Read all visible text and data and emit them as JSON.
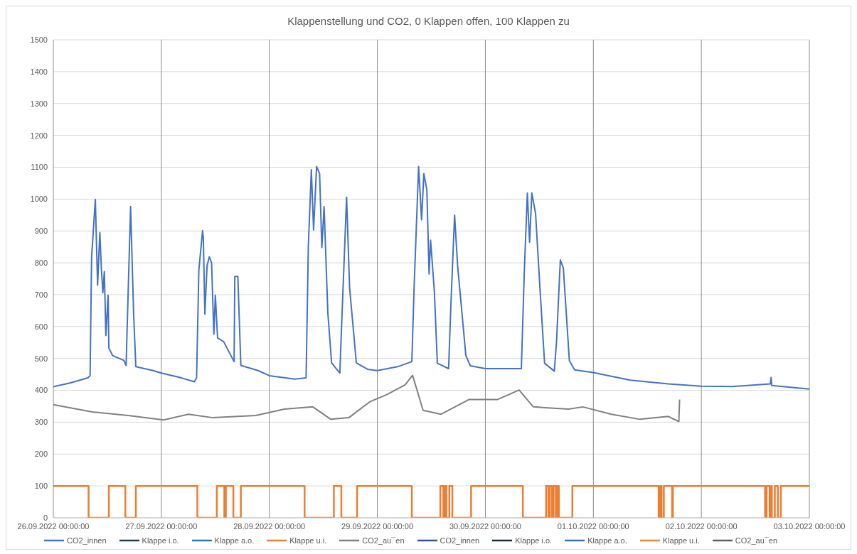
{
  "chart_data": {
    "type": "line",
    "title": "Klappenstellung und CO2, 0 Klappen offen, 100 Klappen zu",
    "grid": true,
    "legend": "bottom",
    "xlim": [
      "2022-09-26T00:00",
      "2022-10-03T00:00"
    ],
    "xticks": [
      {
        "value": "2022-09-26T00:00",
        "label": "26.09.2022 00:00:00"
      },
      {
        "value": "2022-09-27T00:00",
        "label": "27.09.2022 00:00:00"
      },
      {
        "value": "2022-09-28T00:00",
        "label": "28.09.2022 00:00:00"
      },
      {
        "value": "2022-09-29T00:00",
        "label": "29.09.2022 00:00:00"
      },
      {
        "value": "2022-09-30T00:00",
        "label": "30.09.2022 00:00:00"
      },
      {
        "value": "2022-10-01T00:00",
        "label": "01.10.2022 00:00:00"
      },
      {
        "value": "2022-10-02T00:00",
        "label": "02.10.2022 00:00:00"
      },
      {
        "value": "2022-10-03T00:00",
        "label": "03.10.2022 00:00:00"
      }
    ],
    "ylim": [
      0,
      1500
    ],
    "yticks": [
      0,
      100,
      200,
      300,
      400,
      500,
      600,
      700,
      800,
      900,
      1000,
      1100,
      1200,
      1300,
      1400,
      1500
    ],
    "series": [
      {
        "name": "CO2_innen",
        "color": "#4472c4",
        "x": [
          "2022-09-26T00:00",
          "2022-09-26T03:40",
          "2022-09-26T07:40",
          "2022-09-26T08:10",
          "2022-09-26T08:30",
          "2022-09-26T09:20",
          "2022-09-26T09:50",
          "2022-09-26T10:20",
          "2022-09-26T10:40",
          "2022-09-26T11:00",
          "2022-09-26T11:20",
          "2022-09-26T11:40",
          "2022-09-26T12:10",
          "2022-09-26T12:20",
          "2022-09-26T13:10",
          "2022-09-26T15:40",
          "2022-09-26T16:10",
          "2022-09-26T17:10",
          "2022-09-26T17:50",
          "2022-09-26T18:20",
          "2022-09-26T22:10",
          "2022-09-27T00:00",
          "2022-09-27T03:40",
          "2022-09-27T07:20",
          "2022-09-27T07:50",
          "2022-09-27T08:20",
          "2022-09-27T09:10",
          "2022-09-27T09:20",
          "2022-09-27T09:40",
          "2022-09-27T10:10",
          "2022-09-27T10:40",
          "2022-09-27T11:10",
          "2022-09-27T11:40",
          "2022-09-27T12:00",
          "2022-09-27T12:30",
          "2022-09-27T13:50",
          "2022-09-27T16:10",
          "2022-09-27T16:20",
          "2022-09-27T17:00",
          "2022-09-27T17:40",
          "2022-09-27T21:30",
          "2022-09-28T00:00",
          "2022-09-28T05:40",
          "2022-09-28T08:10",
          "2022-09-28T08:40",
          "2022-09-28T09:20",
          "2022-09-28T09:50",
          "2022-09-28T10:30",
          "2022-09-28T11:10",
          "2022-09-28T11:40",
          "2022-09-28T12:10",
          "2022-09-28T13:00",
          "2022-09-28T13:50",
          "2022-09-28T15:40",
          "2022-09-28T16:10",
          "2022-09-28T17:10",
          "2022-09-28T17:50",
          "2022-09-28T19:20",
          "2022-09-28T21:50",
          "2022-09-29T00:00",
          "2022-09-29T04:30",
          "2022-09-29T07:40",
          "2022-09-29T08:10",
          "2022-09-29T09:10",
          "2022-09-29T09:50",
          "2022-09-29T10:20",
          "2022-09-29T11:00",
          "2022-09-29T11:30",
          "2022-09-29T11:50",
          "2022-09-29T12:40",
          "2022-09-29T13:20",
          "2022-09-29T15:50",
          "2022-09-29T16:20",
          "2022-09-29T17:10",
          "2022-09-29T17:50",
          "2022-09-29T19:40",
          "2022-09-29T20:40",
          "2022-09-30T00:00",
          "2022-09-30T08:00",
          "2022-09-30T08:40",
          "2022-09-30T09:20",
          "2022-09-30T09:50",
          "2022-09-30T10:20",
          "2022-09-30T11:10",
          "2022-09-30T12:00",
          "2022-09-30T13:10",
          "2022-09-30T15:20",
          "2022-09-30T15:50",
          "2022-09-30T16:40",
          "2022-09-30T17:20",
          "2022-09-30T18:40",
          "2022-09-30T19:50",
          "2022-10-01T00:00",
          "2022-10-01T08:10",
          "2022-10-01T16:40",
          "2022-10-02T00:00",
          "2022-10-02T06:50",
          "2022-10-02T15:20",
          "2022-10-02T15:30",
          "2022-10-02T15:40",
          "2022-10-03T00:00"
        ],
        "values": [
          411,
          423,
          439,
          446,
          817,
          999,
          730,
          895,
          785,
          706,
          773,
          572,
          698,
          533,
          509,
          494,
          478,
          976,
          643,
          474,
          462,
          454,
          442,
          427,
          439,
          777,
          901,
          879,
          639,
          792,
          819,
          800,
          576,
          698,
          564,
          553,
          490,
          757,
          757,
          478,
          462,
          446,
          435,
          439,
          852,
          1092,
          903,
          1102,
          1080,
          848,
          976,
          643,
          486,
          454,
          643,
          1006,
          722,
          486,
          466,
          462,
          474,
          490,
          722,
          1102,
          935,
          1080,
          1029,
          765,
          871,
          711,
          485,
          468,
          663,
          950,
          792,
          509,
          477,
          468,
          468,
          776,
          1019,
          865,
          1019,
          954,
          752,
          485,
          460,
          557,
          809,
          784,
          493,
          464,
          456,
          432,
          420,
          413,
          412,
          420,
          440,
          415,
          404
        ]
      },
      {
        "name": "Klappe i.o.",
        "type": "step",
        "color": "#1f3864"
      },
      {
        "name": "Klappe a.o.",
        "type": "step",
        "color": "#2e75b6"
      },
      {
        "name": "Klappe u.i.",
        "type": "step",
        "color": "#ed7d31",
        "x": [
          "2022-09-26T00:00",
          "2022-09-26T07:50",
          "2022-09-26T12:20",
          "2022-09-26T16:00",
          "2022-09-26T18:20",
          "2022-09-27T08:00",
          "2022-09-27T12:20",
          "2022-09-27T14:00",
          "2022-09-27T14:20",
          "2022-09-27T16:00",
          "2022-09-27T17:40",
          "2022-09-28T07:50",
          "2022-09-28T14:20",
          "2022-09-28T16:00",
          "2022-09-28T19:30",
          "2022-09-29T07:40",
          "2022-09-29T14:00",
          "2022-09-29T14:40",
          "2022-09-29T15:00",
          "2022-09-29T15:20",
          "2022-09-29T16:00",
          "2022-09-29T16:40",
          "2022-09-29T20:50",
          "2022-09-30T08:20",
          "2022-09-30T13:30",
          "2022-09-30T14:00",
          "2022-09-30T14:20",
          "2022-09-30T14:50",
          "2022-09-30T15:10",
          "2022-09-30T15:40",
          "2022-09-30T16:00",
          "2022-09-30T16:20",
          "2022-09-30T19:20",
          "2022-10-01T14:30",
          "2022-10-01T14:50",
          "2022-10-01T15:10",
          "2022-10-01T15:40",
          "2022-10-01T17:30",
          "2022-10-01T17:40",
          "2022-10-02T14:10",
          "2022-10-02T14:30",
          "2022-10-02T15:10",
          "2022-10-02T15:30",
          "2022-10-02T15:40",
          "2022-10-02T16:20",
          "2022-10-02T17:00",
          "2022-10-02T17:40",
          "2022-10-03T00:00"
        ],
        "values": [
          100,
          0,
          100,
          0,
          100,
          0,
          100,
          0,
          100,
          0,
          100,
          0,
          100,
          0,
          100,
          0,
          100,
          0,
          100,
          0,
          100,
          0,
          100,
          0,
          100,
          0,
          100,
          0,
          100,
          0,
          100,
          0,
          100,
          0,
          100,
          0,
          100,
          0,
          100,
          0,
          100,
          0,
          100,
          0,
          100,
          0,
          100,
          100
        ]
      },
      {
        "name": "CO2_au¯en",
        "color": "#808080",
        "x": [
          "2022-09-26T00:00",
          "2022-09-26T08:40",
          "2022-09-26T16:40",
          "2022-09-27T00:30",
          "2022-09-27T06:00",
          "2022-09-27T11:30",
          "2022-09-27T21:00",
          "2022-09-28T03:20",
          "2022-09-28T09:40",
          "2022-09-28T13:40",
          "2022-09-28T17:40",
          "2022-09-28T22:20",
          "2022-09-29T02:10",
          "2022-09-29T06:10",
          "2022-09-29T07:50",
          "2022-09-29T10:10",
          "2022-09-29T14:10",
          "2022-09-29T20:20",
          "2022-09-30T02:40",
          "2022-09-30T07:30",
          "2022-09-30T10:40",
          "2022-09-30T18:30",
          "2022-09-30T21:40",
          "2022-10-01T04:00",
          "2022-10-01T10:20",
          "2022-10-01T16:40",
          "2022-10-01T19:00",
          "2022-10-01T19:10"
        ],
        "values": [
          355,
          332,
          321,
          307,
          325,
          314,
          321,
          341,
          348,
          309,
          314,
          364,
          387,
          417,
          447,
          337,
          325,
          371,
          371,
          401,
          348,
          341,
          348,
          325,
          309,
          318,
          302,
          371
        ]
      },
      {
        "name": "CO2_innen",
        "color": "#2f5597"
      },
      {
        "name": "Klappe i.o.",
        "color": "#1c2a48"
      },
      {
        "name": "Klappe a.o.",
        "color": "#2e75b6"
      },
      {
        "name": "Klappe u.i.",
        "color": "#e38a35"
      },
      {
        "name": "CO2_au¯en",
        "color": "#5f5f5f"
      }
    ]
  }
}
